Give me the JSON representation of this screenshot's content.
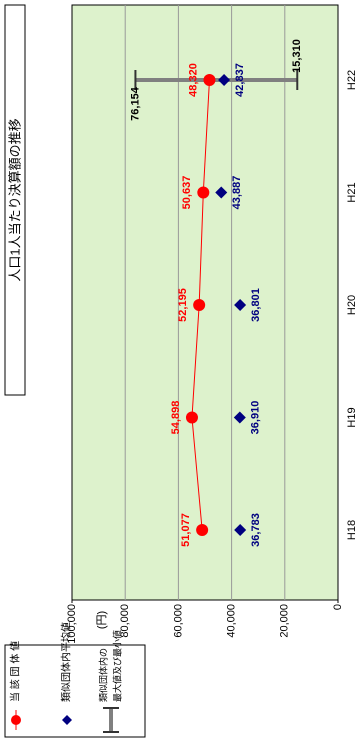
{
  "chart_data": {
    "type": "line",
    "title": "人口1人当たり決算額の推移",
    "y_label": "(円)",
    "categories": [
      "H18",
      "H19",
      "H20",
      "H21",
      "H22"
    ],
    "series": [
      {
        "name": "当 該 団 体 値",
        "color": "#ff0000",
        "values": [
          51077,
          54898,
          52195,
          50637,
          48320
        ],
        "value_labels": [
          "51,077",
          "54,898",
          "52,195",
          "50,637",
          "48,320"
        ]
      },
      {
        "name": "類似団体内平均値",
        "color": "#000080",
        "values": [
          36783,
          36910,
          36801,
          43887,
          42837
        ],
        "value_labels": [
          "36,783",
          "36,910",
          "36,801",
          "43,887",
          "42,837"
        ]
      }
    ],
    "range": {
      "name_lines": [
        "類似団体内の",
        "最大値及び最小値"
      ],
      "color": "#808080",
      "max": [
        null,
        null,
        null,
        null,
        76154
      ],
      "max_labels": [
        null,
        null,
        null,
        null,
        "76,154"
      ],
      "min": [
        null,
        null,
        null,
        null,
        15310
      ],
      "min_labels": [
        null,
        null,
        null,
        null,
        "15,310"
      ]
    },
    "ylim": [
      0,
      100000
    ],
    "yticks": [
      0,
      {
        "value": 20000,
        "label": "20,000"
      },
      {
        "value": 40000,
        "label": "40,000"
      },
      {
        "value": 60000,
        "label": "60,000"
      },
      {
        "value": 80000,
        "label": "80,000"
      },
      {
        "value": 100000,
        "label": "100,000"
      }
    ],
    "grid": true
  }
}
